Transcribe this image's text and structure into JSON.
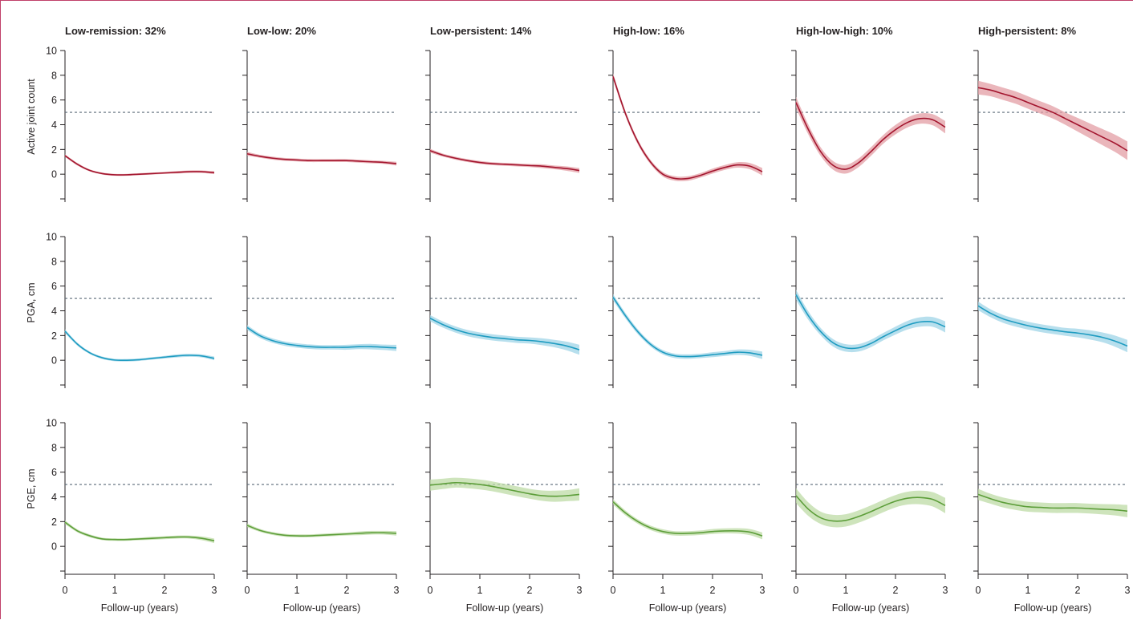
{
  "chart_data": {
    "type": "line",
    "layout": "grid",
    "x_label": "Follow-up (years)",
    "x_ticks": [
      0,
      1,
      2,
      3
    ],
    "xlim": [
      0,
      3
    ],
    "y_ticks": [
      0,
      2,
      4,
      6,
      8,
      10
    ],
    "ylim": [
      -2,
      10
    ],
    "reference_line_y": 5,
    "columns": [
      {
        "title": "Low-remission: 32%"
      },
      {
        "title": "Low-low: 20%"
      },
      {
        "title": "Low-persistent: 14%"
      },
      {
        "title": "High-low: 16%"
      },
      {
        "title": "High-low-high: 10%"
      },
      {
        "title": "High-persistent: 8%"
      }
    ],
    "rows": [
      {
        "ylabel": "Active joint count",
        "line_color": "#a3152e",
        "band_color": "#e39ea4",
        "panels": [
          {
            "x": [
              0,
              0.25,
              0.5,
              0.75,
              1,
              1.25,
              1.5,
              1.75,
              2,
              2.25,
              2.5,
              2.75,
              3
            ],
            "y": [
              1.5,
              0.8,
              0.3,
              0.05,
              -0.05,
              -0.05,
              0.0,
              0.05,
              0.1,
              0.15,
              0.2,
              0.2,
              0.12
            ],
            "band": [
              0.1,
              0.1,
              0.08,
              0.08,
              0.08,
              0.08,
              0.08,
              0.08,
              0.08,
              0.1,
              0.1,
              0.1,
              0.12
            ]
          },
          {
            "x": [
              0,
              0.25,
              0.5,
              0.75,
              1,
              1.25,
              1.5,
              1.75,
              2,
              2.25,
              2.5,
              2.75,
              3
            ],
            "y": [
              1.65,
              1.45,
              1.3,
              1.2,
              1.15,
              1.1,
              1.1,
              1.1,
              1.1,
              1.05,
              1.0,
              0.95,
              0.85
            ],
            "band": [
              0.15,
              0.12,
              0.12,
              0.12,
              0.12,
              0.12,
              0.12,
              0.12,
              0.12,
              0.12,
              0.12,
              0.12,
              0.15
            ]
          },
          {
            "x": [
              0,
              0.25,
              0.5,
              0.75,
              1,
              1.25,
              1.5,
              1.75,
              2,
              2.25,
              2.5,
              2.75,
              3
            ],
            "y": [
              1.9,
              1.55,
              1.3,
              1.1,
              0.95,
              0.85,
              0.8,
              0.75,
              0.7,
              0.65,
              0.55,
              0.45,
              0.3
            ],
            "band": [
              0.15,
              0.12,
              0.12,
              0.12,
              0.12,
              0.12,
              0.12,
              0.12,
              0.12,
              0.15,
              0.15,
              0.18,
              0.2
            ]
          },
          {
            "x": [
              0,
              0.25,
              0.5,
              0.75,
              1,
              1.25,
              1.5,
              1.75,
              2,
              2.25,
              2.5,
              2.75,
              3
            ],
            "y": [
              7.9,
              4.9,
              2.6,
              1.0,
              0.0,
              -0.35,
              -0.35,
              -0.1,
              0.25,
              0.55,
              0.75,
              0.65,
              0.2
            ],
            "band": [
              0.25,
              0.22,
              0.2,
              0.18,
              0.18,
              0.18,
              0.18,
              0.18,
              0.2,
              0.2,
              0.22,
              0.25,
              0.3
            ]
          },
          {
            "x": [
              0,
              0.25,
              0.5,
              0.75,
              1,
              1.25,
              1.5,
              1.75,
              2,
              2.25,
              2.5,
              2.75,
              3
            ],
            "y": [
              5.8,
              3.6,
              1.8,
              0.7,
              0.4,
              0.9,
              1.8,
              2.8,
              3.6,
              4.2,
              4.5,
              4.4,
              3.8
            ],
            "band": [
              0.45,
              0.4,
              0.35,
              0.35,
              0.35,
              0.35,
              0.35,
              0.35,
              0.38,
              0.4,
              0.42,
              0.45,
              0.5
            ]
          },
          {
            "x": [
              0,
              0.25,
              0.5,
              0.75,
              1,
              1.25,
              1.5,
              1.75,
              2,
              2.25,
              2.5,
              2.75,
              3
            ],
            "y": [
              7.0,
              6.8,
              6.5,
              6.2,
              5.8,
              5.4,
              5.0,
              4.5,
              4.0,
              3.5,
              3.0,
              2.5,
              1.9
            ],
            "band": [
              0.55,
              0.5,
              0.5,
              0.5,
              0.5,
              0.5,
              0.5,
              0.5,
              0.55,
              0.6,
              0.65,
              0.7,
              0.75
            ]
          }
        ]
      },
      {
        "ylabel": "PGA, cm",
        "line_color": "#1f9cc1",
        "band_color": "#9fd4e7",
        "panels": [
          {
            "x": [
              0,
              0.25,
              0.5,
              0.75,
              1,
              1.25,
              1.5,
              1.75,
              2,
              2.25,
              2.5,
              2.75,
              3
            ],
            "y": [
              2.35,
              1.3,
              0.6,
              0.2,
              0.02,
              0.0,
              0.05,
              0.15,
              0.25,
              0.35,
              0.4,
              0.35,
              0.15
            ],
            "band": [
              0.15,
              0.12,
              0.1,
              0.1,
              0.1,
              0.1,
              0.1,
              0.1,
              0.1,
              0.12,
              0.12,
              0.12,
              0.15
            ]
          },
          {
            "x": [
              0,
              0.25,
              0.5,
              0.75,
              1,
              1.25,
              1.5,
              1.75,
              2,
              2.25,
              2.5,
              2.75,
              3
            ],
            "y": [
              2.65,
              2.0,
              1.6,
              1.35,
              1.2,
              1.1,
              1.05,
              1.05,
              1.05,
              1.1,
              1.1,
              1.05,
              1.0
            ],
            "band": [
              0.2,
              0.18,
              0.18,
              0.18,
              0.18,
              0.18,
              0.18,
              0.18,
              0.2,
              0.2,
              0.22,
              0.22,
              0.25
            ]
          },
          {
            "x": [
              0,
              0.25,
              0.5,
              0.75,
              1,
              1.25,
              1.5,
              1.75,
              2,
              2.25,
              2.5,
              2.75,
              3
            ],
            "y": [
              3.4,
              2.9,
              2.5,
              2.2,
              2.0,
              1.85,
              1.75,
              1.65,
              1.6,
              1.5,
              1.35,
              1.15,
              0.85
            ],
            "band": [
              0.25,
              0.25,
              0.25,
              0.25,
              0.25,
              0.25,
              0.25,
              0.25,
              0.25,
              0.28,
              0.3,
              0.35,
              0.4
            ]
          },
          {
            "x": [
              0,
              0.25,
              0.5,
              0.75,
              1,
              1.25,
              1.5,
              1.75,
              2,
              2.25,
              2.5,
              2.75,
              3
            ],
            "y": [
              5.1,
              3.6,
              2.3,
              1.3,
              0.65,
              0.35,
              0.3,
              0.35,
              0.45,
              0.55,
              0.65,
              0.6,
              0.4
            ],
            "band": [
              0.25,
              0.22,
              0.2,
              0.18,
              0.18,
              0.18,
              0.18,
              0.18,
              0.2,
              0.2,
              0.22,
              0.25,
              0.3
            ]
          },
          {
            "x": [
              0,
              0.25,
              0.5,
              0.75,
              1,
              1.25,
              1.5,
              1.75,
              2,
              2.25,
              2.5,
              2.75,
              3
            ],
            "y": [
              5.3,
              3.6,
              2.3,
              1.4,
              1.0,
              1.0,
              1.35,
              1.9,
              2.4,
              2.85,
              3.1,
              3.1,
              2.7
            ],
            "band": [
              0.4,
              0.35,
              0.3,
              0.3,
              0.3,
              0.3,
              0.3,
              0.3,
              0.32,
              0.35,
              0.38,
              0.4,
              0.45
            ]
          },
          {
            "x": [
              0,
              0.25,
              0.5,
              0.75,
              1,
              1.25,
              1.5,
              1.75,
              2,
              2.25,
              2.5,
              2.75,
              3
            ],
            "y": [
              4.4,
              3.8,
              3.35,
              3.05,
              2.8,
              2.6,
              2.45,
              2.3,
              2.2,
              2.05,
              1.85,
              1.55,
              1.15
            ],
            "band": [
              0.35,
              0.32,
              0.32,
              0.32,
              0.32,
              0.32,
              0.32,
              0.32,
              0.35,
              0.38,
              0.4,
              0.45,
              0.5
            ]
          }
        ]
      },
      {
        "ylabel": "PGE, cm",
        "line_color": "#5d9e3a",
        "band_color": "#bddba5",
        "panels": [
          {
            "x": [
              0,
              0.25,
              0.5,
              0.75,
              1,
              1.25,
              1.5,
              1.75,
              2,
              2.25,
              2.5,
              2.75,
              3
            ],
            "y": [
              1.95,
              1.25,
              0.85,
              0.6,
              0.55,
              0.55,
              0.6,
              0.65,
              0.7,
              0.75,
              0.75,
              0.65,
              0.45
            ],
            "band": [
              0.15,
              0.12,
              0.12,
              0.1,
              0.1,
              0.1,
              0.1,
              0.12,
              0.12,
              0.12,
              0.12,
              0.15,
              0.18
            ]
          },
          {
            "x": [
              0,
              0.25,
              0.5,
              0.75,
              1,
              1.25,
              1.5,
              1.75,
              2,
              2.25,
              2.5,
              2.75,
              3
            ],
            "y": [
              1.7,
              1.3,
              1.05,
              0.9,
              0.85,
              0.85,
              0.9,
              0.95,
              1.0,
              1.05,
              1.1,
              1.1,
              1.05
            ],
            "band": [
              0.15,
              0.12,
              0.12,
              0.12,
              0.12,
              0.12,
              0.12,
              0.12,
              0.12,
              0.15,
              0.15,
              0.15,
              0.18
            ]
          },
          {
            "x": [
              0,
              0.25,
              0.5,
              0.75,
              1,
              1.25,
              1.5,
              1.75,
              2,
              2.25,
              2.5,
              2.75,
              3
            ],
            "y": [
              4.95,
              5.05,
              5.15,
              5.1,
              5.0,
              4.85,
              4.65,
              4.45,
              4.25,
              4.1,
              4.05,
              4.1,
              4.2
            ],
            "band": [
              0.45,
              0.42,
              0.4,
              0.4,
              0.4,
              0.4,
              0.4,
              0.4,
              0.4,
              0.42,
              0.45,
              0.45,
              0.5
            ]
          },
          {
            "x": [
              0,
              0.25,
              0.5,
              0.75,
              1,
              1.25,
              1.5,
              1.75,
              2,
              2.25,
              2.5,
              2.75,
              3
            ],
            "y": [
              3.6,
              2.7,
              2.0,
              1.5,
              1.2,
              1.05,
              1.05,
              1.1,
              1.2,
              1.25,
              1.25,
              1.15,
              0.85
            ],
            "band": [
              0.22,
              0.2,
              0.18,
              0.18,
              0.18,
              0.18,
              0.18,
              0.18,
              0.2,
              0.2,
              0.22,
              0.25,
              0.28
            ]
          },
          {
            "x": [
              0,
              0.25,
              0.5,
              0.75,
              1,
              1.25,
              1.5,
              1.75,
              2,
              2.25,
              2.5,
              2.75,
              3
            ],
            "y": [
              4.1,
              3.0,
              2.3,
              2.05,
              2.1,
              2.4,
              2.8,
              3.25,
              3.65,
              3.9,
              3.95,
              3.8,
              3.3
            ],
            "band": [
              0.6,
              0.55,
              0.5,
              0.5,
              0.5,
              0.5,
              0.5,
              0.5,
              0.5,
              0.52,
              0.55,
              0.58,
              0.62
            ]
          },
          {
            "x": [
              0,
              0.25,
              0.5,
              0.75,
              1,
              1.25,
              1.5,
              1.75,
              2,
              2.25,
              2.5,
              2.75,
              3
            ],
            "y": [
              4.2,
              3.85,
              3.55,
              3.35,
              3.2,
              3.15,
              3.1,
              3.1,
              3.1,
              3.05,
              3.0,
              2.95,
              2.85
            ],
            "band": [
              0.45,
              0.4,
              0.4,
              0.4,
              0.4,
              0.4,
              0.4,
              0.4,
              0.4,
              0.4,
              0.42,
              0.45,
              0.5
            ]
          }
        ]
      }
    ]
  }
}
